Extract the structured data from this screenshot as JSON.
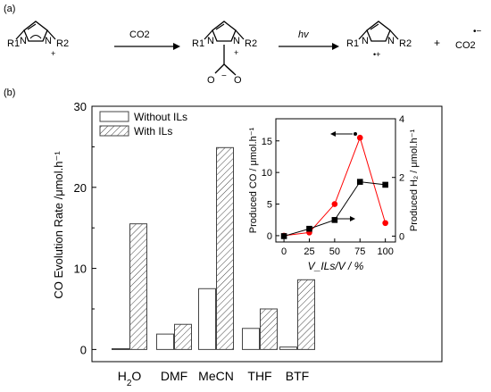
{
  "panel_a": {
    "label": "(a)",
    "step1_reagent": "CO2",
    "step2_reagent": "hv",
    "plus": "+",
    "product": "CO2",
    "product_mark": "•−",
    "substituent_1": "R1",
    "substituent_2": "R2",
    "cation_charge": "+",
    "radical_cation_mark": "•+",
    "carboxylate_charge": "−"
  },
  "panel_b_label": "(b)",
  "chart_data": [
    {
      "type": "bar",
      "categories": [
        "H2O",
        "DMF",
        "MeCN",
        "THF",
        "BTF"
      ],
      "ylabel": "CO Evolution Rate /μmol.h⁻¹",
      "ylim": [
        -1.5,
        30
      ],
      "yticks": [
        0,
        10,
        20,
        30
      ],
      "legend": "top-left",
      "series": [
        {
          "name": "Without ILs",
          "values": [
            0.1,
            1.9,
            7.5,
            2.6,
            0.3
          ],
          "fill": "#ffffff"
        },
        {
          "name": "With ILs",
          "values": [
            15.5,
            3.1,
            24.9,
            5.0,
            8.6
          ],
          "fill": "hatched"
        }
      ]
    },
    {
      "type": "line",
      "xlabel": "V_ILs/V / %",
      "x": [
        0,
        25,
        50,
        75,
        100
      ],
      "xlim": [
        -8,
        110
      ],
      "xticks": [
        0,
        25,
        50,
        75,
        100
      ],
      "ylabel_left": "Produced CO / μmol.h⁻¹",
      "ylabel_right": "Produced H₂ / μmol.h⁻¹",
      "ylim_left": [
        -1,
        18.5
      ],
      "yticks_left": [
        0,
        5,
        10,
        15
      ],
      "ylim_right": [
        -0.2,
        4
      ],
      "yticks_right": [
        0,
        2,
        4
      ],
      "series": [
        {
          "name": "Produced CO",
          "axis": "left",
          "color": "#ff0000",
          "marker": "circle",
          "values": [
            0.0,
            0.5,
            5.0,
            15.5,
            2.0
          ]
        },
        {
          "name": "Produced H2",
          "axis": "right",
          "color": "#000000",
          "marker": "square",
          "values": [
            0.0,
            0.25,
            0.55,
            1.85,
            1.75
          ]
        }
      ]
    }
  ]
}
